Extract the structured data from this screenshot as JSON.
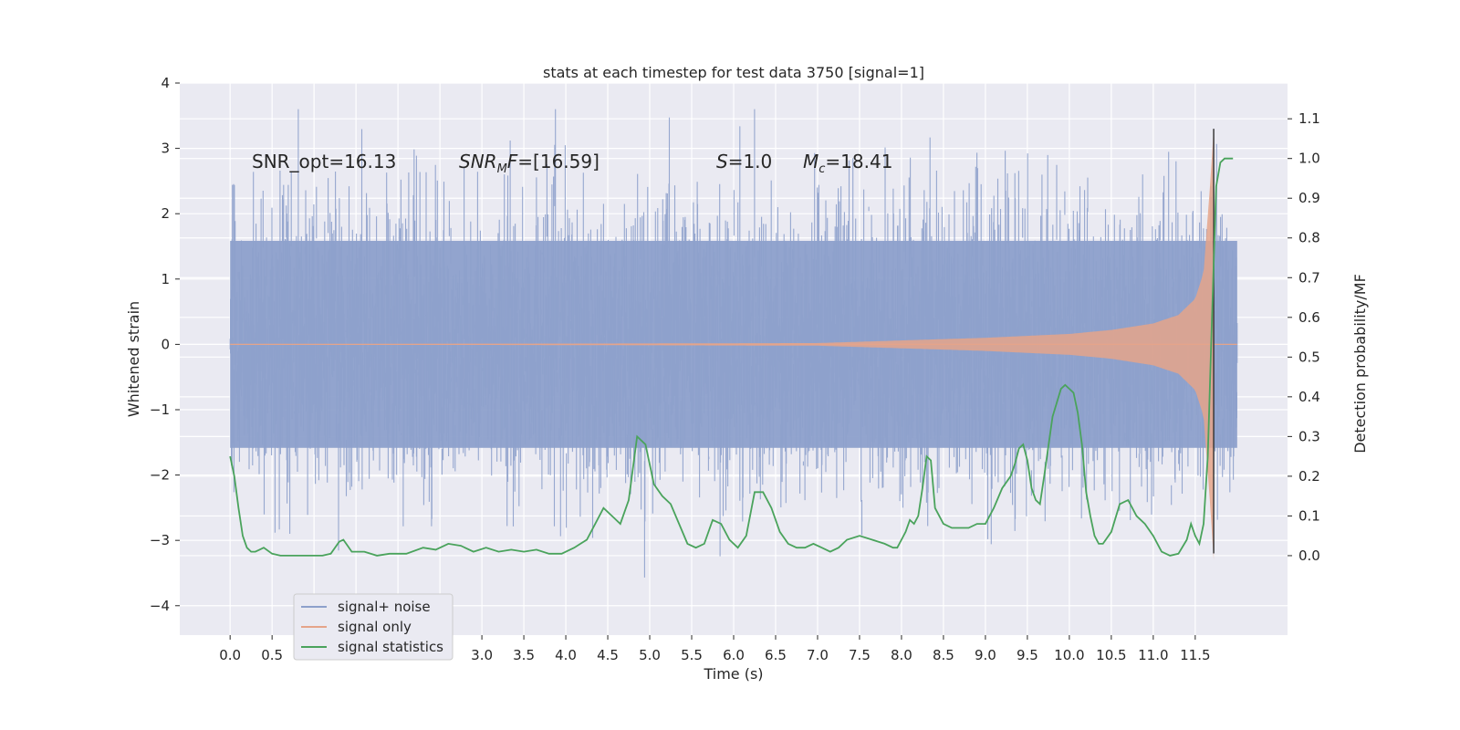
{
  "chart_data": {
    "type": "line",
    "title": "stats at each timestep for test data 3750 [signal=1]",
    "xlabel": "Time (s)",
    "ylabel": "Whitened strain",
    "ylabel_right": "Detection probability/MF",
    "xlim": [
      -0.6,
      12.6
    ],
    "ylim": [
      -4.45,
      4.0
    ],
    "ylim_right": [
      -0.2,
      1.19
    ],
    "x_ticks": [
      "0.0",
      "0.5",
      "1.0",
      "1.5",
      "2.0",
      "2.5",
      "3.0",
      "3.5",
      "4.0",
      "4.5",
      "5.0",
      "5.5",
      "6.0",
      "6.5",
      "7.0",
      "7.5",
      "8.0",
      "8.5",
      "9.0",
      "9.5",
      "10.0",
      "10.5",
      "11.0",
      "11.5"
    ],
    "y_ticks": [
      "4",
      "3",
      "2",
      "1",
      "0",
      "−1",
      "−2",
      "−3",
      "−4"
    ],
    "y_ticks_right": [
      "1.1",
      "1.0",
      "0.9",
      "0.8",
      "0.7",
      "0.6",
      "0.5",
      "0.4",
      "0.3",
      "0.2",
      "0.1",
      "0.0"
    ],
    "grid": true,
    "legend_position": "lower-left",
    "annotations": {
      "snr_opt": "SNR_opt=16.13",
      "snr_mf_math": "SNR",
      "snr_mf_sub": "M",
      "snr_mf_italic2": "F",
      "snr_mf_value": "=[16.59]",
      "s_math": "S",
      "s_value": "=1.0",
      "mc_math": "M",
      "mc_sub": "c",
      "mc_value": "=18.41"
    },
    "series": [
      {
        "name": "signal+ noise",
        "color": "#8da0cb",
        "axis": "left",
        "description_values": "dense noise band, typical amplitude ±1.5, peaks to about ±3.6",
        "envelope_upper": 2.4,
        "envelope_lower": -2.4,
        "t_range": [
          0.0,
          12.0
        ]
      },
      {
        "name": "signal only",
        "color": "#e5a48a",
        "axis": "left",
        "x": [
          0.0,
          7.0,
          8.0,
          9.0,
          10.0,
          10.5,
          11.0,
          11.3,
          11.5,
          11.6,
          11.68,
          11.72
        ],
        "amplitude": [
          0.0,
          0.02,
          0.06,
          0.1,
          0.16,
          0.22,
          0.32,
          0.45,
          0.7,
          1.1,
          2.5,
          3.3
        ]
      },
      {
        "name": "signal statistics",
        "color": "#4aa35c",
        "axis": "right",
        "x": [
          0.0,
          0.05,
          0.1,
          0.15,
          0.2,
          0.25,
          0.3,
          0.35,
          0.4,
          0.5,
          0.6,
          0.7,
          0.8,
          0.9,
          1.0,
          1.1,
          1.2,
          1.3,
          1.35,
          1.45,
          1.6,
          1.75,
          1.9,
          2.1,
          2.3,
          2.45,
          2.6,
          2.75,
          2.9,
          3.05,
          3.2,
          3.35,
          3.5,
          3.65,
          3.8,
          3.95,
          4.1,
          4.25,
          4.35,
          4.45,
          4.55,
          4.65,
          4.75,
          4.85,
          4.95,
          5.05,
          5.15,
          5.25,
          5.35,
          5.45,
          5.55,
          5.65,
          5.75,
          5.85,
          5.95,
          6.05,
          6.15,
          6.25,
          6.35,
          6.45,
          6.55,
          6.65,
          6.75,
          6.85,
          6.95,
          7.05,
          7.15,
          7.25,
          7.35,
          7.5,
          7.65,
          7.8,
          7.9,
          7.95,
          8.0,
          8.05,
          8.1,
          8.15,
          8.2,
          8.25,
          8.3,
          8.35,
          8.4,
          8.5,
          8.6,
          8.7,
          8.8,
          8.9,
          9.0,
          9.1,
          9.2,
          9.3,
          9.35,
          9.4,
          9.45,
          9.5,
          9.55,
          9.6,
          9.65,
          9.7,
          9.8,
          9.9,
          9.95,
          10.0,
          10.05,
          10.1,
          10.15,
          10.2,
          10.25,
          10.3,
          10.35,
          10.4,
          10.5,
          10.6,
          10.7,
          10.8,
          10.9,
          11.0,
          11.1,
          11.2,
          11.3,
          11.4,
          11.45,
          11.5,
          11.55,
          11.6,
          11.65,
          11.7,
          11.75,
          11.8,
          11.85,
          11.9,
          11.95
        ],
        "y": [
          0.25,
          0.2,
          0.12,
          0.05,
          0.02,
          0.01,
          0.01,
          0.015,
          0.02,
          0.005,
          0.0,
          0.0,
          0.0,
          0.0,
          0.0,
          0.0,
          0.005,
          0.035,
          0.04,
          0.01,
          0.01,
          0.0,
          0.005,
          0.005,
          0.02,
          0.015,
          0.03,
          0.025,
          0.01,
          0.02,
          0.01,
          0.015,
          0.01,
          0.015,
          0.005,
          0.005,
          0.02,
          0.04,
          0.08,
          0.12,
          0.1,
          0.08,
          0.14,
          0.3,
          0.28,
          0.18,
          0.15,
          0.13,
          0.08,
          0.03,
          0.02,
          0.03,
          0.09,
          0.08,
          0.04,
          0.02,
          0.05,
          0.16,
          0.16,
          0.12,
          0.06,
          0.03,
          0.02,
          0.02,
          0.03,
          0.02,
          0.01,
          0.02,
          0.04,
          0.05,
          0.04,
          0.03,
          0.02,
          0.02,
          0.04,
          0.06,
          0.09,
          0.08,
          0.1,
          0.17,
          0.25,
          0.24,
          0.12,
          0.08,
          0.07,
          0.07,
          0.07,
          0.08,
          0.08,
          0.12,
          0.17,
          0.2,
          0.23,
          0.27,
          0.28,
          0.24,
          0.17,
          0.14,
          0.13,
          0.2,
          0.35,
          0.42,
          0.43,
          0.42,
          0.41,
          0.36,
          0.28,
          0.16,
          0.1,
          0.05,
          0.03,
          0.03,
          0.06,
          0.13,
          0.14,
          0.1,
          0.08,
          0.05,
          0.01,
          0.0,
          0.005,
          0.04,
          0.08,
          0.05,
          0.03,
          0.08,
          0.25,
          0.6,
          0.93,
          0.99,
          1.0,
          1.0,
          1.0
        ]
      }
    ]
  }
}
